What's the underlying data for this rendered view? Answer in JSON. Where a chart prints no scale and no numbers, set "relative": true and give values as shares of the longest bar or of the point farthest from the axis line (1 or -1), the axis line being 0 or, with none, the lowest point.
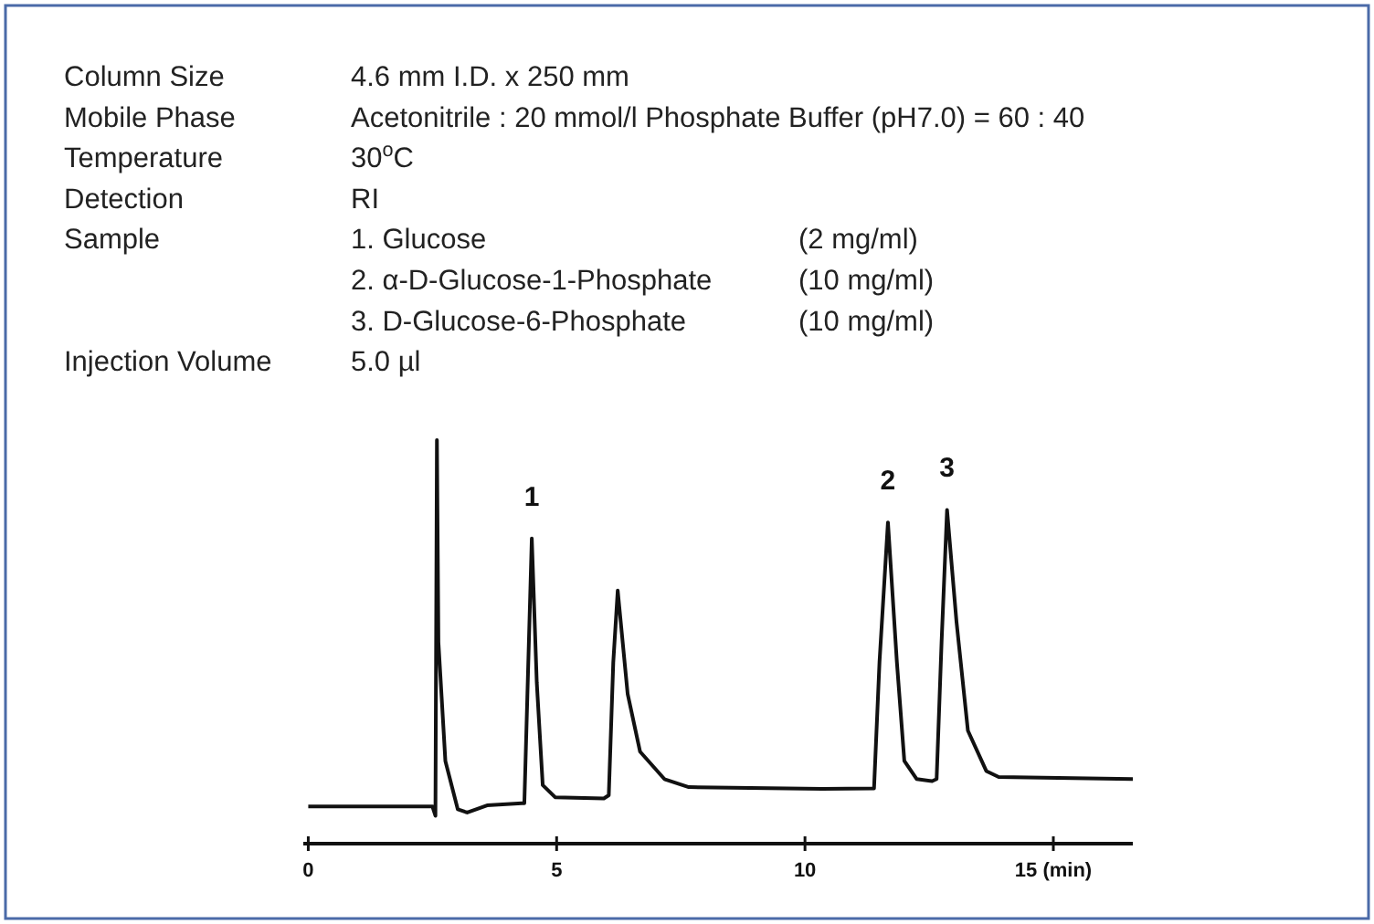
{
  "chart_data": {
    "type": "line",
    "relative": true,
    "line_style": "solid",
    "x": [
      0,
      2.5,
      2.56,
      2.59,
      2.62,
      2.76,
      3.01,
      3.2,
      3.6,
      4.3,
      4.35,
      4.5,
      4.6,
      4.72,
      4.97,
      5.95,
      6.05,
      6.14,
      6.23,
      6.43,
      6.68,
      7.17,
      7.66,
      10.35,
      11.39,
      11.5,
      11.67,
      11.85,
      12.0,
      12.25,
      12.56,
      12.65,
      12.75,
      12.86,
      13.05,
      13.28,
      13.65,
      13.9,
      16.6
    ],
    "series": [
      {
        "color": "#111111",
        "values": [
          0.092,
          0.092,
          0.069,
          1.0,
          0.5,
          0.205,
          0.085,
          0.077,
          0.095,
          0.1,
          0.1,
          0.756,
          0.4,
          0.145,
          0.115,
          0.112,
          0.12,
          0.448,
          0.627,
          0.371,
          0.228,
          0.16,
          0.14,
          0.136,
          0.137,
          0.45,
          0.796,
          0.45,
          0.205,
          0.16,
          0.155,
          0.16,
          0.5,
          0.827,
          0.55,
          0.28,
          0.18,
          0.165,
          0.16
        ]
      }
    ],
    "xlim": [
      -0.1,
      16.6
    ],
    "xticks": [
      0,
      5,
      10,
      {
        "value": 15,
        "label": "15 (min)"
      }
    ],
    "annotations": [
      "Column Size\t4.6 mm I.D. x 250 mm",
      "Mobile Phase\tAcetonitrile : 20 mmol/l Phosphate Buffer (pH7.0) = 60 : 40",
      "Temperature\t30$^{o}$C",
      "Detection\tRI",
      "Sample\t1. Glucose\t(2 mg/ml)",
      "\t2. α-D-Glucose-1-Phosphate\t(10 mg/ml)",
      "\t3. D-Glucose-6-Phosphate\t(10 mg/ml)",
      "Injection Volume\t5.0 µl",
      {
        "text": "1",
        "x": 4.5,
        "y": 0.756
      },
      {
        "text": "2",
        "x": 11.67,
        "y": 0.796
      },
      {
        "text": "3",
        "x": 12.86,
        "y": 0.827
      }
    ]
  }
}
